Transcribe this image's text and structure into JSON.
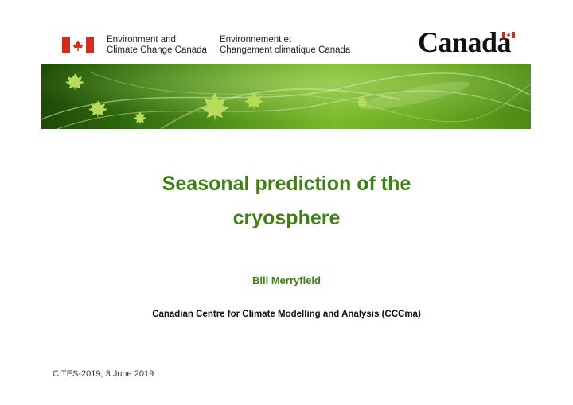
{
  "header": {
    "department_en": [
      "Environment and",
      "Climate Change Canada"
    ],
    "department_fr": [
      "Environnement et",
      "Changement climatique Canada"
    ],
    "wordmark": "Canada",
    "colors": {
      "flag_red": "#d52b1e",
      "banner_green": "#5a9a1c"
    }
  },
  "slide": {
    "title_line1": "Seasonal prediction of the",
    "title_line2": "cryosphere",
    "author": "Bill Merryfield",
    "affiliation": "Canadian Centre for Climate Modelling and Analysis (CCCma)",
    "footer": "CITES-2019,  3 June 2019",
    "colors": {
      "title": "#3f7f15",
      "text": "#111111"
    }
  }
}
